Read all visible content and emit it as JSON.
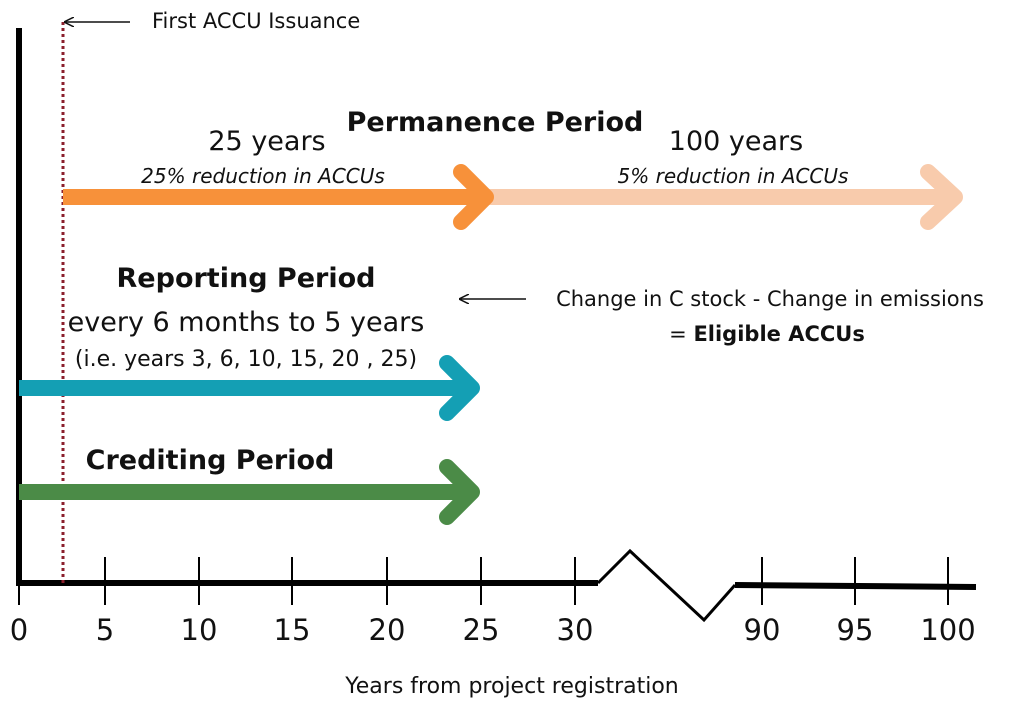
{
  "colors": {
    "permanence_first": "#f7913a",
    "permanence_second": "#f8cbac",
    "reporting": "#149fb4",
    "crediting": "#4b8b47",
    "issuance_line": "#8b1f2c",
    "axis": "#000000"
  },
  "annotations": {
    "first_issuance": "First ACCU Issuance",
    "change_formula_line1": "Change in C stock - Change in emissions",
    "change_formula_prefix": "= ",
    "change_formula_bold": "Eligible ACCUs"
  },
  "permanence": {
    "title": "Permanence Period",
    "option_a": {
      "years": "25 years",
      "reduction": "25% reduction in ACCUs"
    },
    "option_b": {
      "years": "100 years",
      "reduction": "5% reduction in ACCUs"
    }
  },
  "reporting": {
    "title": "Reporting Period",
    "line1": "every 6 months to 5 years",
    "line2": "(i.e. years 3, 6, 10, 15, 20 , 25)"
  },
  "crediting": {
    "title": "Crediting Period"
  },
  "x_axis": {
    "label": "Years from project registration",
    "ticks": [
      "0",
      "5",
      "10",
      "15",
      "20",
      "25",
      "30",
      "90",
      "95",
      "100"
    ]
  }
}
